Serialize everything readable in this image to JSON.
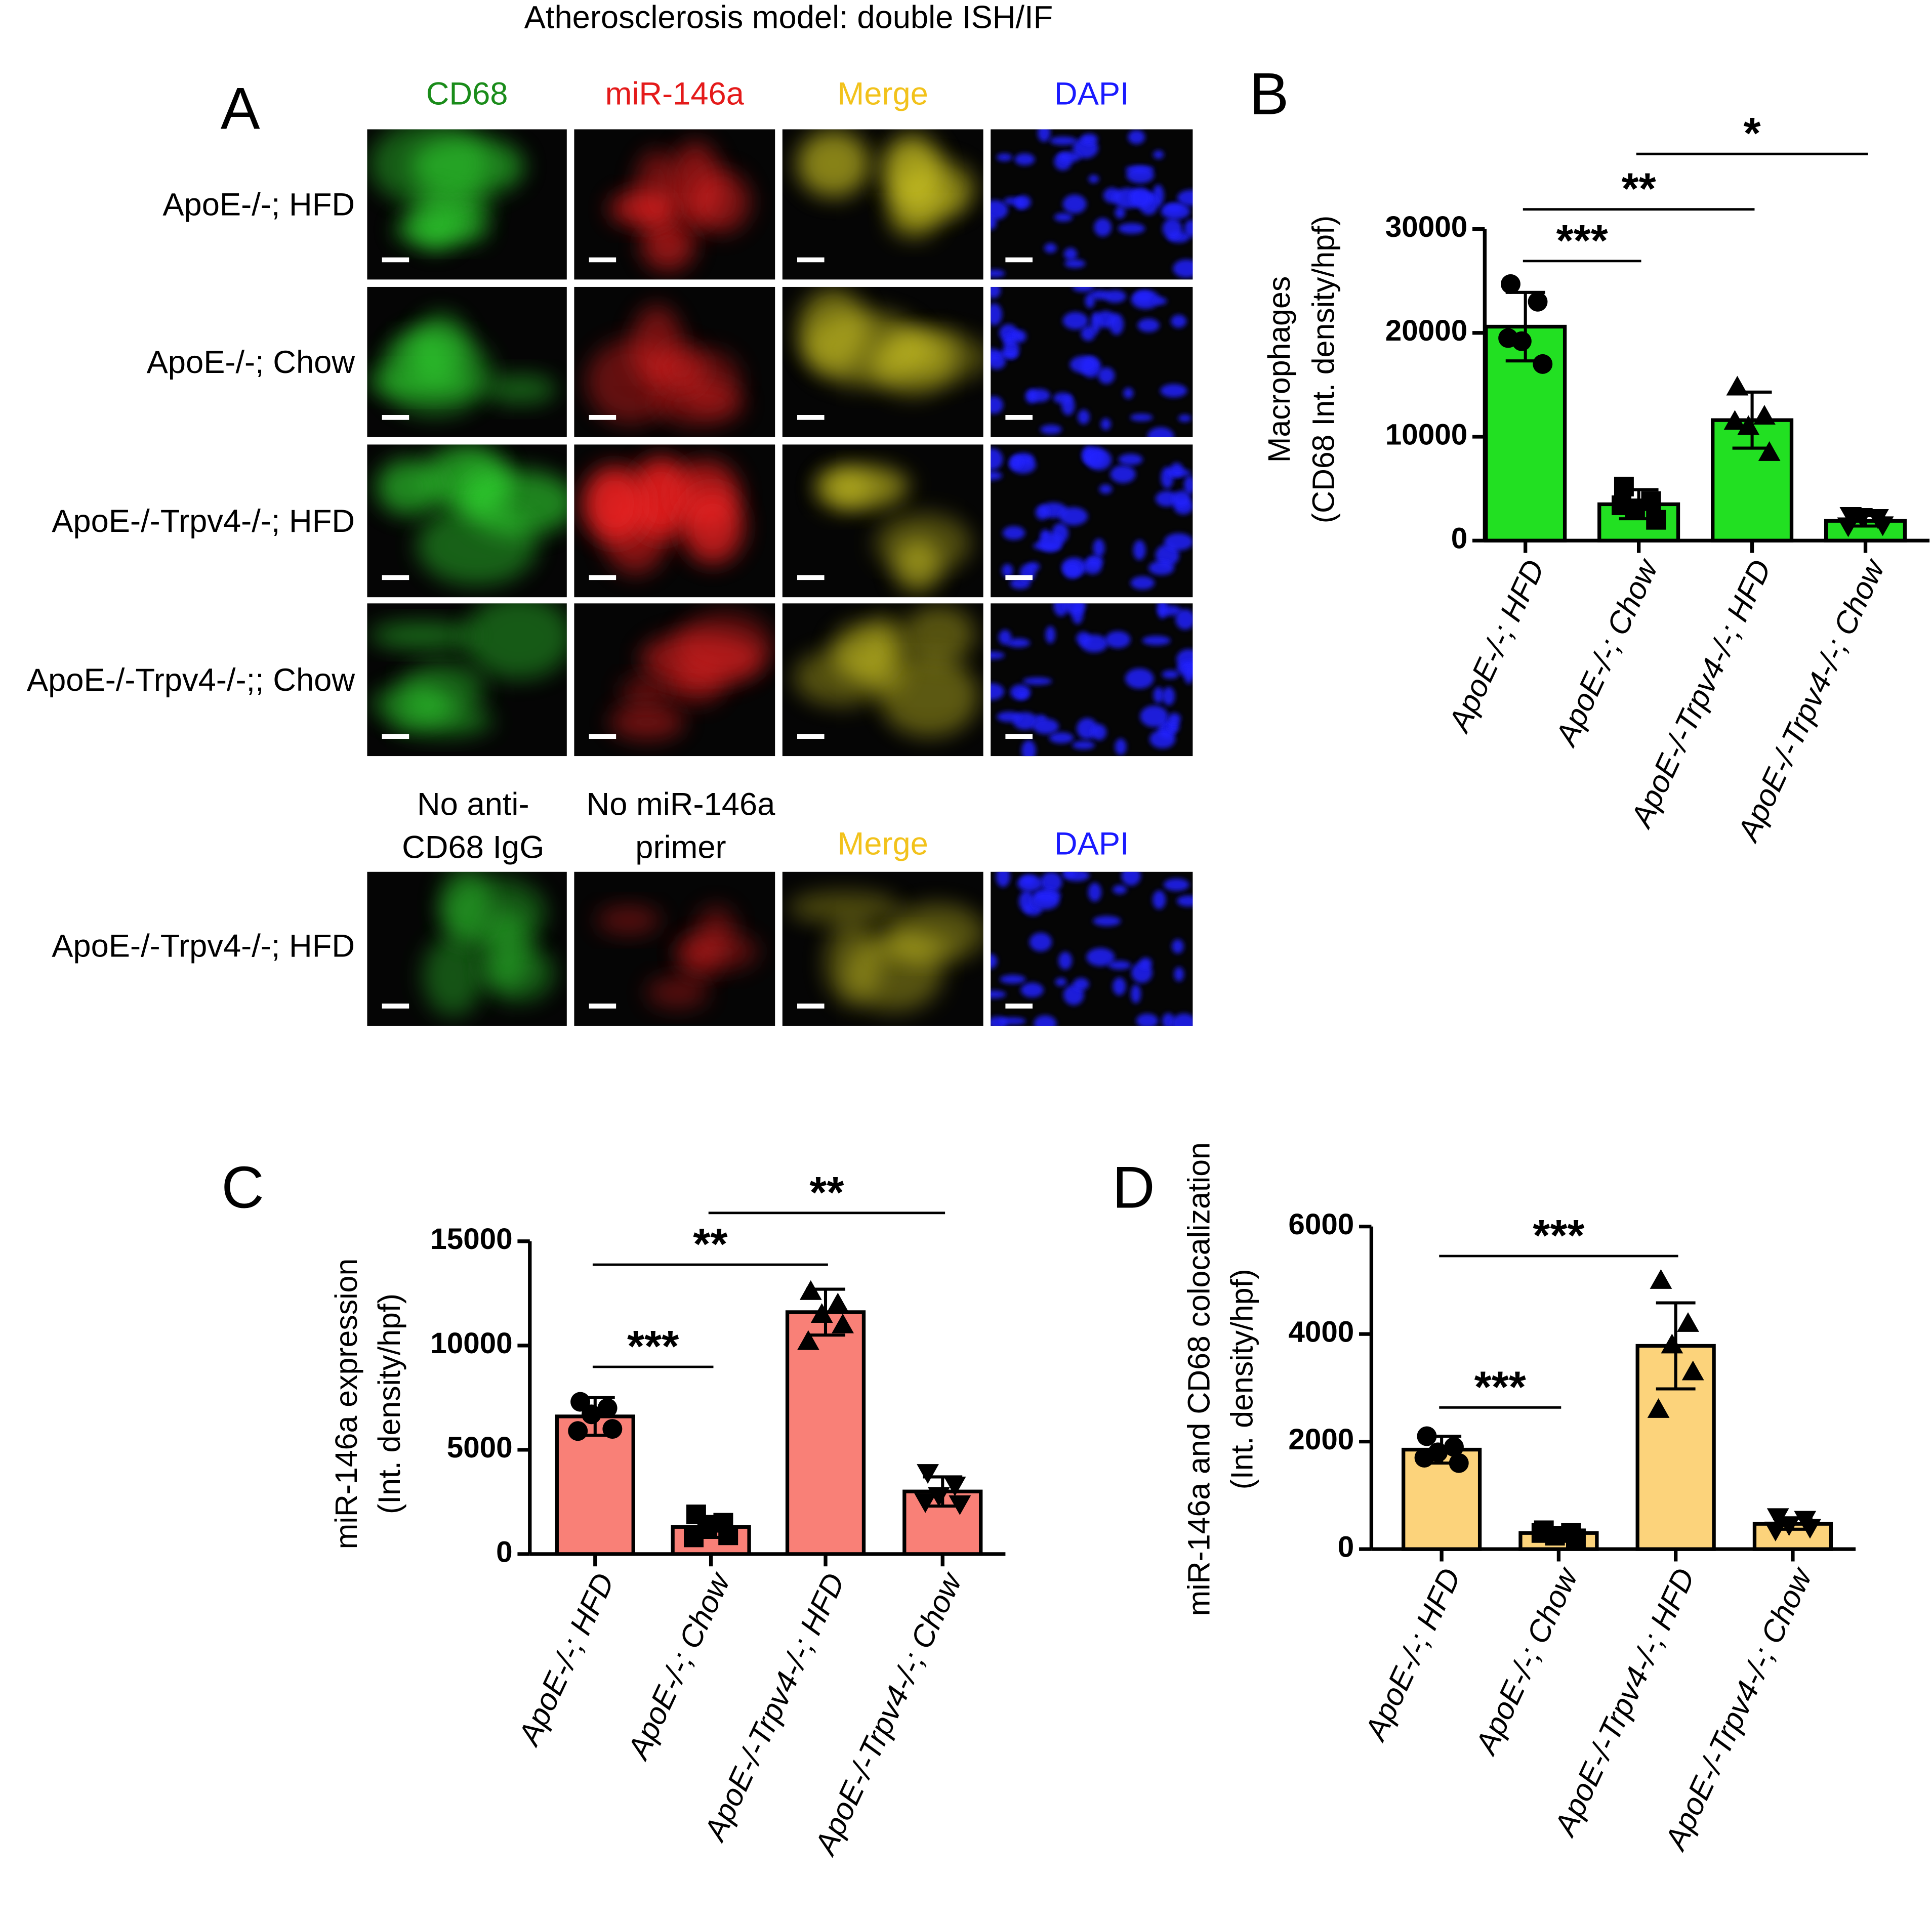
{
  "title": "Atherosclerosis model: double ISH/IF",
  "panel_a": {
    "label": "A",
    "columns": [
      "CD68",
      "miR-146a",
      "Merge",
      "DAPI"
    ],
    "column_colors": [
      "#1a8c1a",
      "#e41a1a",
      "#f2c21b",
      "#1a1aff"
    ],
    "rows": [
      "ApoE-/-; HFD",
      "ApoE-/-; Chow",
      "ApoE-/-Trpv4-/-; HFD",
      "ApoE-/-Trpv4-/-;; Chow"
    ],
    "control_columns": [
      [
        "No anti-",
        "CD68 IgG"
      ],
      [
        "No miR-146a",
        "primer"
      ],
      [
        "Merge"
      ],
      [
        "DAPI"
      ]
    ],
    "control_column_colors": [
      "#000000",
      "#000000",
      "#f2c21b",
      "#1a1aff"
    ],
    "control_row": "ApoE-/-Trpv4-/-; HFD"
  },
  "chart_data": [
    {
      "type": "bar",
      "panel": "B",
      "ylabel": [
        "Macrophages",
        "(CD68 Int. density/hpf)"
      ],
      "categories": [
        "ApoE-/-; HFD",
        "ApoE-/-; Chow",
        "ApoE-/-Trpv4-/-; HFD",
        "ApoE-/-Trpv4-/-; Chow"
      ],
      "values": [
        20600,
        3500,
        11600,
        1900
      ],
      "errors": [
        3300,
        1400,
        2700,
        500
      ],
      "points": [
        [
          24700,
          23000,
          19200,
          17000,
          19500
        ],
        [
          5200,
          3800,
          3100,
          2000,
          3400
        ],
        [
          14800,
          12000,
          11000,
          8500,
          11500
        ],
        [
          2400,
          2200,
          2300,
          1500,
          1400
        ]
      ],
      "markers": [
        "circle",
        "square",
        "triangle-up",
        "triangle-down"
      ],
      "color": "#22e022",
      "ylim": [
        0,
        30000
      ],
      "yticks": [
        0,
        10000,
        20000,
        30000
      ],
      "significance": [
        {
          "from": 0,
          "to": 1,
          "label": "***"
        },
        {
          "from": 0,
          "to": 2,
          "label": "**"
        },
        {
          "from": 1,
          "to": 3,
          "label": "*"
        }
      ]
    },
    {
      "type": "bar",
      "panel": "C",
      "ylabel": [
        "miR-146a expression",
        "(Int. density/hpf)"
      ],
      "categories": [
        "ApoE-/-; HFD",
        "ApoE-/-; Chow",
        "ApoE-/-Trpv4-/-; HFD",
        "ApoE-/-Trpv4-/-; Chow"
      ],
      "values": [
        6600,
        1300,
        11600,
        3000
      ],
      "errors": [
        900,
        500,
        1100,
        700
      ],
      "points": [
        [
          7300,
          7000,
          6700,
          6000,
          5900
        ],
        [
          1900,
          1500,
          1300,
          900,
          800
        ],
        [
          12600,
          12000,
          11500,
          11000,
          10200
        ],
        [
          3900,
          3300,
          2800,
          2400,
          2500
        ]
      ],
      "markers": [
        "circle",
        "square",
        "triangle-up",
        "triangle-down"
      ],
      "color": "#f98077",
      "ylim": [
        0,
        15000
      ],
      "yticks": [
        0,
        5000,
        10000,
        15000
      ],
      "significance": [
        {
          "from": 0,
          "to": 1,
          "label": "***"
        },
        {
          "from": 0,
          "to": 2,
          "label": "**"
        },
        {
          "from": 1,
          "to": 3,
          "label": "**"
        }
      ]
    },
    {
      "type": "bar",
      "panel": "D",
      "ylabel": [
        "miR-146a  and CD68 colocalization",
        "(Int. density/hpf)"
      ],
      "categories": [
        "ApoE-/-; HFD",
        "ApoE-/-; Chow",
        "ApoE-/-Trpv4-/-; HFD",
        "ApoE-/-Trpv4-/-; Chow"
      ],
      "values": [
        1850,
        300,
        3780,
        470
      ],
      "errors": [
        250,
        100,
        800,
        100
      ],
      "points": [
        [
          2100,
          1900,
          1800,
          1600,
          1700
        ],
        [
          350,
          300,
          250,
          200,
          300
        ],
        [
          5000,
          4200,
          3800,
          3300,
          2600
        ],
        [
          600,
          550,
          450,
          400,
          350
        ]
      ],
      "markers": [
        "circle",
        "square",
        "triangle-up",
        "triangle-down"
      ],
      "color": "#fcd37b",
      "ylim": [
        0,
        6000
      ],
      "yticks": [
        0,
        2000,
        4000,
        6000
      ],
      "significance": [
        {
          "from": 0,
          "to": 1,
          "label": "***"
        },
        {
          "from": 0,
          "to": 2,
          "label": "***"
        }
      ]
    }
  ]
}
